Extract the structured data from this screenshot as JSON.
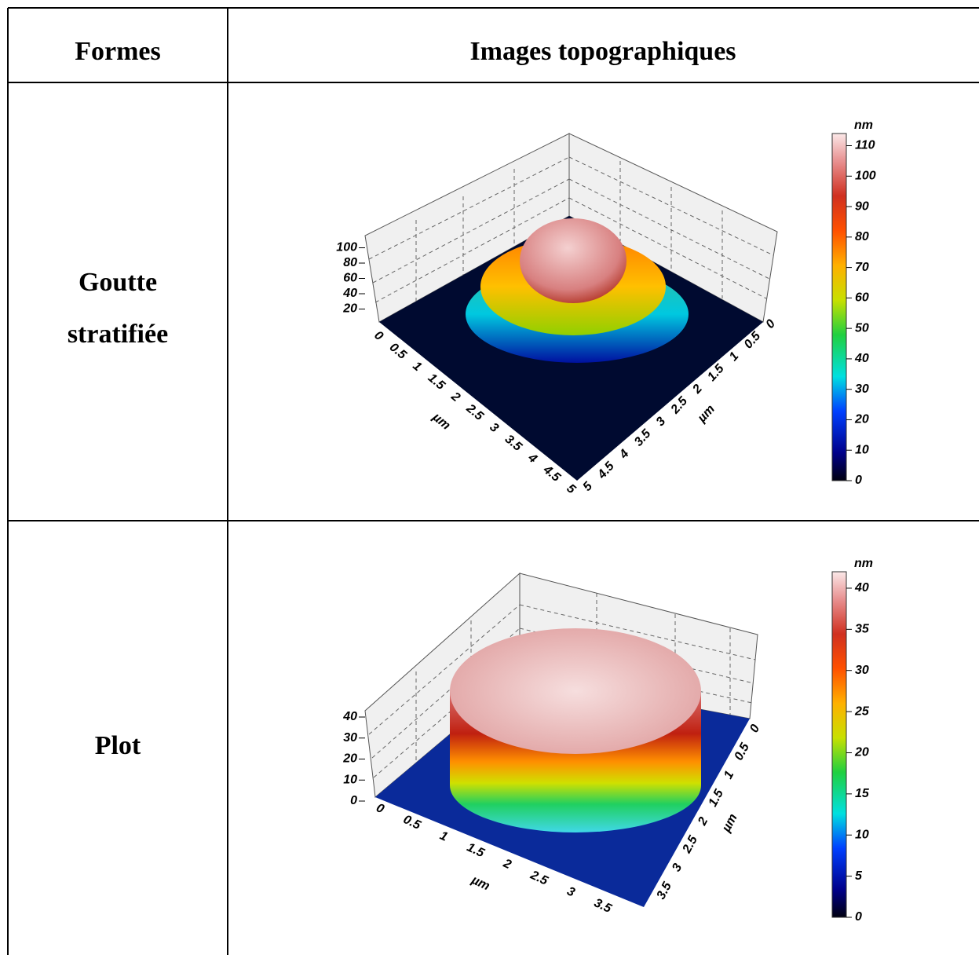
{
  "table": {
    "header": [
      "Formes",
      "Images topographiques"
    ],
    "rows": [
      {
        "forme": [
          "Goutte",
          "stratifiée"
        ],
        "image": {
          "unit": "nm",
          "colorbar_range": [
            0,
            114
          ],
          "colorbar_ticks": [
            0,
            10,
            20,
            30,
            40,
            50,
            60,
            70,
            80,
            90,
            100,
            110
          ],
          "z_ticks": [
            20,
            40,
            60,
            80,
            100
          ],
          "x_ticks": [
            0,
            0.5,
            1,
            1.5,
            2,
            2.5,
            3,
            3.5,
            4,
            4.5,
            5
          ],
          "y_ticks": [
            0,
            0.5,
            1,
            1.5,
            2,
            2.5,
            3,
            3.5,
            4,
            4.5,
            5
          ],
          "x_label": "µm",
          "y_label": "µm"
        }
      },
      {
        "forme": [
          "Plot"
        ],
        "image": {
          "unit": "nm",
          "colorbar_range": [
            0,
            42
          ],
          "colorbar_ticks": [
            0,
            5,
            10,
            15,
            20,
            25,
            30,
            35,
            40
          ],
          "z_ticks": [
            0,
            10,
            20,
            30,
            40
          ],
          "x_ticks": [
            0,
            0.5,
            1,
            1.5,
            2,
            2.5,
            3,
            3.5
          ],
          "y_ticks": [
            0,
            0.5,
            1,
            1.5,
            2,
            2.5,
            3,
            3.5
          ],
          "x_label": "µm",
          "y_label": "µm"
        }
      }
    ]
  }
}
